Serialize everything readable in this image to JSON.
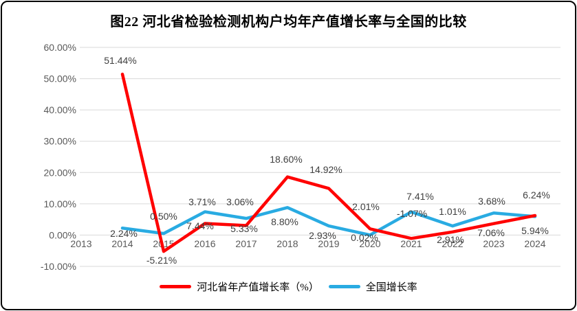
{
  "title": "图22 河北省检验检测机构户均年产值增长率与全国的比较",
  "colors": {
    "hebei_line": "#ff0000",
    "national_line": "#29abe2",
    "gridline": "#d9d9d9",
    "axis_text": "#595959",
    "data_label_text": "#404040",
    "border": "#000000",
    "background": "#ffffff"
  },
  "chart_data": {
    "type": "line",
    "categories": [
      "2013",
      "2014",
      "2015",
      "2016",
      "2017",
      "2018",
      "2019",
      "2020",
      "2021",
      "2022",
      "2023",
      "2024"
    ],
    "series": [
      {
        "name": "河北省年产值增长率（%）",
        "color": "#ff0000",
        "values": [
          null,
          51.44,
          -5.21,
          3.71,
          3.06,
          18.6,
          14.92,
          2.01,
          -1.07,
          1.01,
          3.68,
          6.24
        ]
      },
      {
        "name": "全国增长率",
        "color": "#29abe2",
        "values": [
          null,
          2.24,
          0.5,
          7.44,
          5.33,
          8.8,
          2.93,
          0.02,
          7.41,
          2.91,
          7.06,
          5.94
        ]
      }
    ],
    "ylim": [
      -10,
      60
    ],
    "y_step": 10,
    "ytick_labels": [
      "60.00%",
      "50.00%",
      "40.00%",
      "30.00%",
      "20.00%",
      "10.00%",
      "0.00%",
      "-10.00%"
    ],
    "grid": true,
    "data_labels_format": "0.00%",
    "legend_position": "bottom"
  }
}
